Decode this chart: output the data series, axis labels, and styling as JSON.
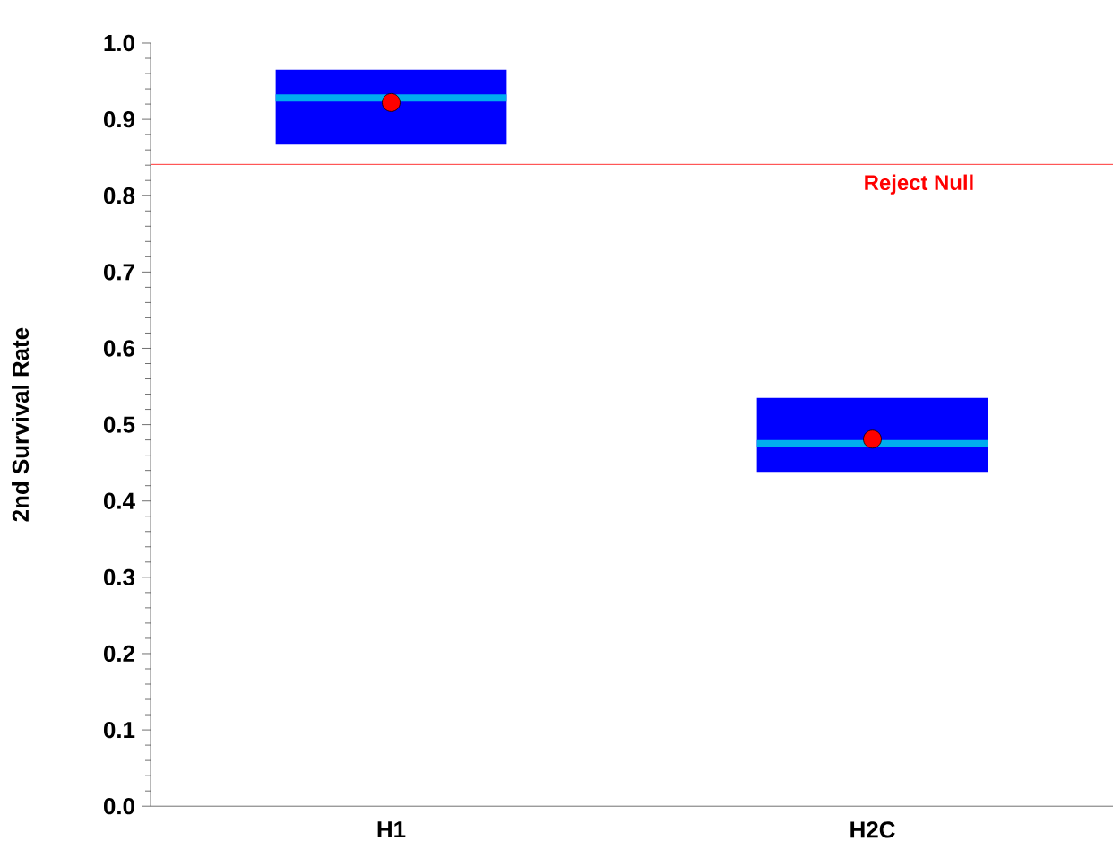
{
  "chart_data": {
    "type": "box",
    "ylabel": "2nd Survival Rate",
    "categories": [
      "H1",
      "H2C"
    ],
    "color": "#0000ff",
    "boxes": [
      {
        "low": 0.867,
        "q1": 0.867,
        "median": 0.928,
        "q3": 0.965,
        "high": 0.965,
        "mean": 0.922
      },
      {
        "low": 0.438,
        "q1": 0.438,
        "median": 0.475,
        "q3": 0.535,
        "high": 0.535,
        "mean": 0.481
      }
    ],
    "marker": "circle",
    "ylim": [
      0,
      1.0
    ],
    "yticks": [
      {
        "value": 0,
        "label": "0.0"
      },
      0.1,
      0.2,
      0.3,
      0.4,
      0.5,
      0.6,
      0.7,
      0.8,
      0.9,
      {
        "value": 1.0,
        "label": "1.0"
      }
    ],
    "ref_lines": [
      {
        "axis": "y",
        "value": 0.841,
        "label": "Reject Null",
        "color": "#ff0000"
      }
    ],
    "grid": false
  }
}
